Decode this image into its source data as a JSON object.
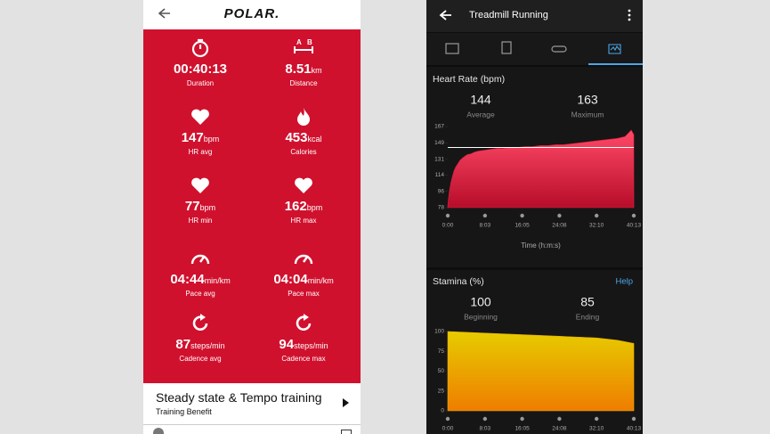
{
  "polar": {
    "logo": "POLAR.",
    "stats": [
      {
        "value": "00:40:13",
        "label": "Duration"
      },
      {
        "value": 8.51,
        "unit": "km",
        "label": "Distance"
      },
      {
        "value": 147,
        "unit": "bpm",
        "label": "HR avg"
      },
      {
        "value": 453,
        "unit": "kcal",
        "label": "Calories"
      },
      {
        "value": 77,
        "unit": "bpm",
        "label": "HR min"
      },
      {
        "value": 162,
        "unit": "bpm",
        "label": "HR max"
      },
      {
        "value": "04:44",
        "unit": "min/km",
        "label": "Pace avg"
      },
      {
        "value": "04:04",
        "unit": "min/km",
        "label": "Pace max"
      },
      {
        "value": 87,
        "unit": "steps/min",
        "label": "Cadence avg"
      },
      {
        "value": 94,
        "unit": "steps/min",
        "label": "Cadence max"
      }
    ],
    "benefit": {
      "title": "Steady state & Tempo training",
      "subtitle": "Training Benefit"
    }
  },
  "garmin": {
    "title": "Treadmill Running"
  },
  "chart_data": [
    {
      "type": "area",
      "title": "Heart Rate (bpm)",
      "summary": [
        {
          "value": 144,
          "label": "Average"
        },
        {
          "value": 163,
          "label": "Maximum"
        }
      ],
      "x": [
        0,
        20,
        40,
        60,
        80,
        100,
        130,
        160,
        200,
        250,
        300,
        350,
        400,
        480,
        560,
        640,
        720,
        800,
        900,
        1000,
        1100,
        1200,
        1300,
        1400,
        1500,
        1600,
        1700,
        1800,
        1900,
        2000,
        2100,
        2200,
        2300,
        2380,
        2413
      ],
      "values": [
        80,
        95,
        105,
        112,
        118,
        122,
        126,
        130,
        133,
        136,
        137,
        139,
        140,
        141,
        142,
        143,
        143,
        144,
        144,
        145,
        145,
        146,
        146,
        147,
        147,
        148,
        149,
        150,
        151,
        152,
        153,
        154,
        156,
        163,
        158
      ],
      "color": "#e8213f",
      "average_line": true,
      "xlabel": "Time (h:m:s)",
      "xlim": [
        0,
        2413
      ],
      "xticks": [
        {
          "value": 0,
          "label": "0:00"
        },
        {
          "value": 483,
          "label": "8:03"
        },
        {
          "value": 965,
          "label": "16:05"
        },
        {
          "value": 1448,
          "label": "24:08"
        },
        {
          "value": 1930,
          "label": "32:10"
        },
        {
          "value": 2413,
          "label": "40:13"
        }
      ],
      "ylim": [
        78,
        167
      ],
      "yticks": [
        78,
        96,
        114,
        131,
        149,
        167
      ]
    },
    {
      "type": "area",
      "title": "Stamina (%)",
      "link": "Help",
      "summary": [
        {
          "value": 100,
          "label": "Beginning"
        },
        {
          "value": 85,
          "label": "Ending"
        }
      ],
      "x": [
        0,
        483,
        965,
        1448,
        1930,
        2200,
        2413
      ],
      "values": [
        100,
        98,
        96,
        94,
        92,
        89,
        85
      ],
      "color": "#eeaa00",
      "xlim": [
        0,
        2413
      ],
      "xticks": [
        {
          "value": 0,
          "label": "0:00"
        },
        {
          "value": 483,
          "label": "8:03"
        },
        {
          "value": 965,
          "label": "16:05"
        },
        {
          "value": 1448,
          "label": "24:08"
        },
        {
          "value": 1930,
          "label": "32:10"
        },
        {
          "value": 2413,
          "label": "40:13"
        }
      ],
      "ylim": [
        0,
        100
      ],
      "yticks": [
        0,
        25,
        50,
        75,
        100
      ]
    }
  ]
}
